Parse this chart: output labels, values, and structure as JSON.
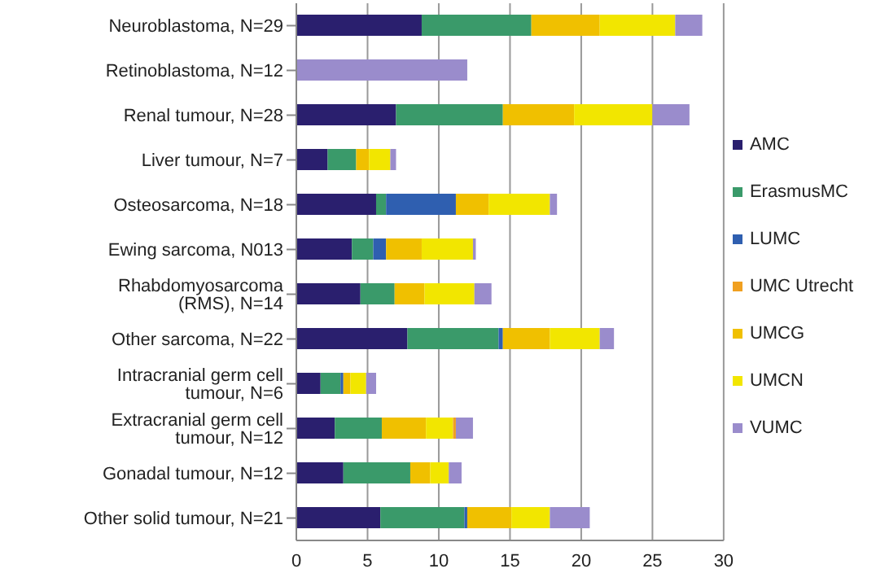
{
  "chart_data": {
    "type": "bar",
    "orientation": "horizontal",
    "stacked": true,
    "grid": "x",
    "legend": "right",
    "categories": [
      "Neuroblastoma, N=29",
      "Retinoblastoma, N=12",
      "Renal tumour, N=28",
      "Liver tumour, N=7",
      "Osteosarcoma, N=18",
      "Ewing sarcoma, N013",
      "Rhabdomyosarcoma (RMS), N=14",
      "Other sarcoma, N=22",
      "Intracranial germ cell tumour, N=6",
      "Extracranial germ cell tumour, N=12",
      "Gonadal tumour, N=12",
      "Other solid tumour, N=21"
    ],
    "xlim": [
      0,
      30
    ],
    "xticks": [
      0,
      5,
      10,
      15,
      20,
      25,
      30
    ],
    "series": [
      {
        "name": "AMC",
        "color": "#2a1f6e",
        "values": [
          8.8,
          0,
          7,
          2.2,
          5.6,
          3.9,
          4.5,
          7.8,
          1.7,
          2.7,
          3.3,
          5.9
        ]
      },
      {
        "name": "ErasmusMC",
        "color": "#3a9a6a",
        "values": [
          7.7,
          0,
          7.5,
          2,
          0.7,
          1.5,
          2.4,
          6.4,
          1.4,
          3.3,
          4.7,
          5.9
        ]
      },
      {
        "name": "LUMC",
        "color": "#2f5fb0",
        "values": [
          0,
          0,
          0,
          0,
          4.9,
          0.9,
          0,
          0.3,
          0.2,
          0,
          0,
          0.2
        ]
      },
      {
        "name": "UMCG",
        "color": "#f0c000",
        "values": [
          4.8,
          0,
          5,
          0.9,
          2.3,
          2.5,
          2.1,
          3.3,
          0.5,
          3.1,
          1.4,
          3.1
        ]
      },
      {
        "name": "UMCN",
        "color": "#f2e600",
        "values": [
          5.3,
          0,
          5.5,
          1.5,
          4.3,
          3.6,
          3.5,
          3.5,
          1.1,
          1.9,
          1.3,
          2.7
        ]
      },
      {
        "name": "UMC Utrecht",
        "color": "#f0a020",
        "values": [
          0,
          0,
          0,
          0,
          0,
          0,
          0,
          0,
          0,
          0.2,
          0,
          0
        ]
      },
      {
        "name": "VUMC",
        "color": "#9a8ccc",
        "values": [
          1.9,
          12,
          2.6,
          0.4,
          0.5,
          0.2,
          1.2,
          1,
          0.7,
          1.2,
          0.9,
          2.8
        ]
      }
    ]
  }
}
